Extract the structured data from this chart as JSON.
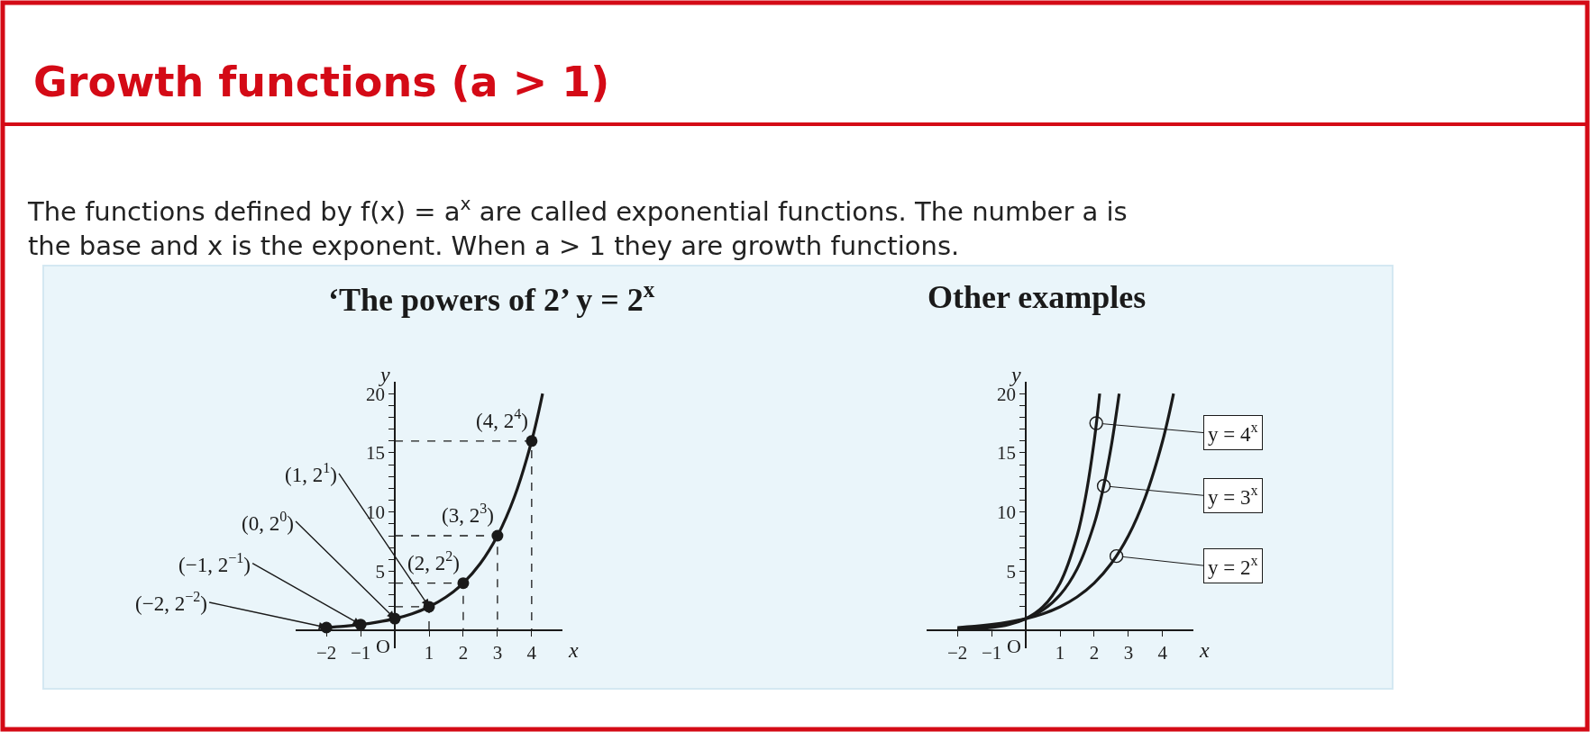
{
  "chart_data": [
    {
      "type": "line",
      "title": "‘The powers of 2’ y = 2$^{x}$",
      "xlabel": "x",
      "ylabel": "y",
      "annotations": [
        "Growth functions (a > 1)",
        "The functions defined by f(x) = a$^{x}$ are called exponential functions. The number a is\nthe base and x is the exponent. When a > 1 they are growth functions.",
        "O",
        {
          "text": "(−2, 2$^{−2}$)",
          "x": -2,
          "y": 0.25
        },
        {
          "text": "(−1, 2$^{−1}$)",
          "x": -1,
          "y": 0.5
        },
        {
          "text": "(0, 2$^{0}$)",
          "x": 0,
          "y": 1
        },
        {
          "text": "(1, 2$^{1}$)",
          "x": 1,
          "y": 2
        },
        {
          "text": "(2, 2$^{2}$)",
          "x": 2,
          "y": 4
        },
        {
          "text": "(3, 2$^{3}$)",
          "x": 3,
          "y": 8
        },
        {
          "text": "(4, 2$^{4}$)",
          "x": 4,
          "y": 16
        }
      ],
      "series": [
        {
          "type": "line",
          "color": "#1a1a1a",
          "x": [
            -2,
            -1.5,
            -1,
            -0.5,
            0,
            0.5,
            1,
            1.5,
            2,
            2.5,
            3,
            3.5,
            4,
            4.32
          ],
          "values": [
            0.25,
            0.35,
            0.5,
            0.71,
            1,
            1.41,
            2,
            2.83,
            4,
            5.66,
            8,
            11.31,
            16,
            20
          ]
        },
        {
          "type": "scatter",
          "marker": "circle",
          "color": "#1a1a1a",
          "x": [
            -2,
            -1,
            0,
            1,
            2,
            3,
            4
          ],
          "values": [
            0.25,
            0.5,
            1,
            2,
            4,
            8,
            16
          ]
        },
        {
          "type": "line",
          "line_style": "dashed",
          "color": "#1a1a1a",
          "x": [
            0,
            1,
            1,
            null,
            0,
            2,
            2,
            null,
            0,
            3,
            3,
            null,
            0,
            4,
            4
          ],
          "values": [
            2,
            2,
            0,
            null,
            4,
            4,
            0,
            null,
            8,
            8,
            0,
            null,
            16,
            16,
            0
          ]
        }
      ],
      "xlim": [
        -2.9,
        4.9
      ],
      "ylim": [
        -1.5,
        21
      ],
      "xticks": [
        -2,
        -1,
        1,
        2,
        3,
        4
      ],
      "yticks": [
        {
          "value": 1,
          "label": null
        },
        {
          "value": 2,
          "label": null
        },
        {
          "value": 3,
          "label": null
        },
        {
          "value": 4,
          "label": null
        },
        5,
        {
          "value": 6,
          "label": null
        },
        {
          "value": 7,
          "label": null
        },
        {
          "value": 8,
          "label": null
        },
        {
          "value": 9,
          "label": null
        },
        10,
        {
          "value": 11,
          "label": null
        },
        {
          "value": 12,
          "label": null
        },
        {
          "value": 13,
          "label": null
        },
        {
          "value": 14,
          "label": null
        },
        15,
        {
          "value": 16,
          "label": null
        },
        {
          "value": 17,
          "label": null
        },
        {
          "value": 18,
          "label": null
        },
        {
          "value": 19,
          "label": null
        },
        20
      ]
    },
    {
      "type": "line",
      "title": "Other examples",
      "xlabel": "x",
      "ylabel": "y",
      "annotations": [
        "O",
        {
          "text": "y = 4$^{x}$",
          "x": 2.06,
          "y": 17.5
        },
        {
          "text": "y = 3$^{x}$",
          "x": 2.28,
          "y": 12.2
        },
        {
          "text": "y = 2$^{x}$",
          "x": 2.65,
          "y": 6.28
        }
      ],
      "series": [
        {
          "color": "#1a1a1a",
          "x": [
            -2,
            -1,
            -0.5,
            0,
            0.5,
            1,
            1.5,
            1.75,
            2,
            2.16
          ],
          "values": [
            0.06,
            0.25,
            0.5,
            1,
            2,
            4,
            8,
            11.31,
            16,
            20
          ]
        },
        {
          "color": "#1a1a1a",
          "x": [
            -2,
            -1,
            -0.5,
            0,
            0.5,
            1,
            1.5,
            2,
            2.25,
            2.5,
            2.73
          ],
          "values": [
            0.11,
            0.33,
            0.58,
            1,
            1.73,
            3,
            5.2,
            9,
            11.84,
            15.59,
            20
          ]
        },
        {
          "color": "#1a1a1a",
          "x": [
            -2,
            -1.5,
            -1,
            -0.5,
            0,
            0.5,
            1,
            1.5,
            2,
            2.5,
            3,
            3.5,
            4,
            4.32
          ],
          "values": [
            0.25,
            0.35,
            0.5,
            0.71,
            1,
            1.41,
            2,
            2.83,
            4,
            5.66,
            8,
            11.31,
            16,
            20
          ]
        }
      ],
      "xlim": [
        -2.9,
        4.9
      ],
      "ylim": [
        -1.5,
        21
      ],
      "xticks": [
        -2,
        -1,
        1,
        2,
        3,
        4
      ],
      "yticks": [
        {
          "value": 1,
          "label": null
        },
        {
          "value": 2,
          "label": null
        },
        {
          "value": 3,
          "label": null
        },
        {
          "value": 4,
          "label": null
        },
        5,
        {
          "value": 6,
          "label": null
        },
        {
          "value": 7,
          "label": null
        },
        {
          "value": 8,
          "label": null
        },
        {
          "value": 9,
          "label": null
        },
        10,
        {
          "value": 11,
          "label": null
        },
        {
          "value": 12,
          "label": null
        },
        {
          "value": 13,
          "label": null
        },
        {
          "value": 14,
          "label": null
        },
        15,
        {
          "value": 16,
          "label": null
        },
        {
          "value": 17,
          "label": null
        },
        {
          "value": 18,
          "label": null
        },
        {
          "value": 19,
          "label": null
        },
        20
      ]
    }
  ]
}
